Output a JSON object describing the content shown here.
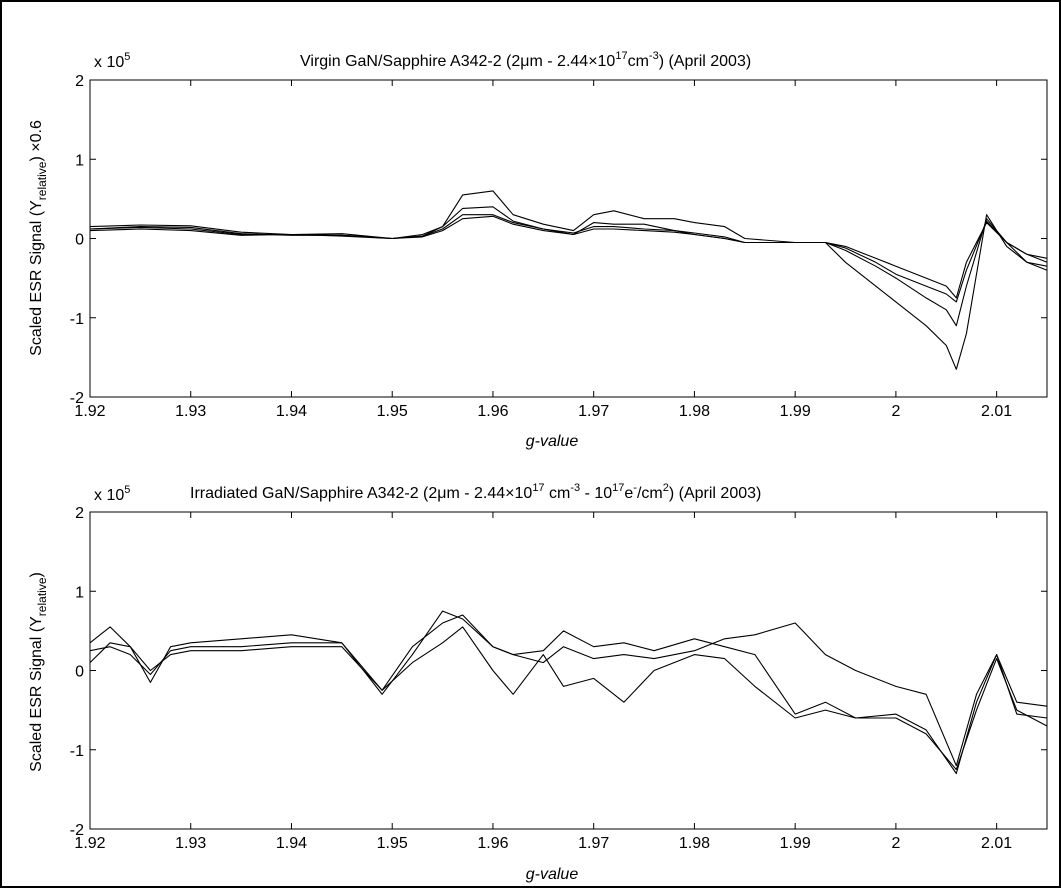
{
  "chart_data": [
    {
      "type": "line",
      "title_main": "Virgin GaN/Sapphire A342-2 (2",
      "title_mu": "μ",
      "title_a": "m - 2.44",
      "title_times": "×",
      "title_b": "10",
      "title_exp1": "17",
      "title_c": "cm",
      "title_exp2": "-3",
      "title_d": ") (April 2003)",
      "xlabel": "g-value",
      "ylabel_a": "Scaled ESR Signal (Y",
      "ylabel_sub": "relative",
      "ylabel_b": ") ×0.6",
      "multiplier_base": "x 10",
      "multiplier_exp": "5",
      "xlim": [
        1.92,
        2.015
      ],
      "ylim": [
        -2,
        2
      ],
      "x_ticks": [
        "1.92",
        "1.93",
        "1.94",
        "1.95",
        "1.96",
        "1.97",
        "1.98",
        "1.99",
        "2",
        "2.01"
      ],
      "y_ticks": [
        "-2",
        "-1",
        "0",
        "1",
        "2"
      ],
      "grid": false,
      "x": [
        1.92,
        1.925,
        1.93,
        1.935,
        1.94,
        1.945,
        1.95,
        1.953,
        1.955,
        1.957,
        1.96,
        1.962,
        1.965,
        1.968,
        1.97,
        1.972,
        1.975,
        1.978,
        1.98,
        1.983,
        1.985,
        1.99,
        1.993,
        1.995,
        1.998,
        2.0,
        2.003,
        2.005,
        2.006,
        2.007,
        2.009,
        2.011,
        2.013,
        2.015
      ],
      "series": [
        {
          "values": [
            0.15,
            0.17,
            0.16,
            0.08,
            0.05,
            0.06,
            0.0,
            0.05,
            0.15,
            0.55,
            0.6,
            0.3,
            0.18,
            0.1,
            0.3,
            0.35,
            0.25,
            0.25,
            0.2,
            0.15,
            0.0,
            -0.05,
            -0.05,
            -0.3,
            -0.6,
            -0.8,
            -1.1,
            -1.35,
            -1.65,
            -1.2,
            0.3,
            -0.1,
            -0.3,
            -0.4
          ]
        },
        {
          "values": [
            0.12,
            0.14,
            0.12,
            0.05,
            0.05,
            0.04,
            0.0,
            0.03,
            0.15,
            0.38,
            0.4,
            0.22,
            0.12,
            0.05,
            0.2,
            0.18,
            0.18,
            0.1,
            0.05,
            0.0,
            -0.05,
            -0.05,
            -0.05,
            -0.15,
            -0.35,
            -0.5,
            -0.75,
            -0.9,
            -1.1,
            -0.6,
            0.25,
            -0.05,
            -0.3,
            -0.35
          ]
        },
        {
          "values": [
            0.1,
            0.12,
            0.1,
            0.04,
            0.05,
            0.03,
            0.0,
            0.02,
            0.1,
            0.25,
            0.28,
            0.18,
            0.1,
            0.05,
            0.12,
            0.12,
            0.1,
            0.08,
            0.05,
            0.0,
            -0.05,
            -0.05,
            -0.05,
            -0.1,
            -0.25,
            -0.35,
            -0.5,
            -0.6,
            -0.75,
            -0.3,
            0.2,
            -0.05,
            -0.2,
            -0.25
          ]
        },
        {
          "values": [
            0.12,
            0.15,
            0.14,
            0.06,
            0.04,
            0.04,
            0.0,
            0.03,
            0.12,
            0.3,
            0.3,
            0.2,
            0.12,
            0.07,
            0.15,
            0.15,
            0.12,
            0.1,
            0.07,
            0.02,
            -0.05,
            -0.05,
            -0.05,
            -0.12,
            -0.3,
            -0.45,
            -0.6,
            -0.7,
            -0.8,
            -0.4,
            0.22,
            -0.05,
            -0.2,
            -0.3
          ]
        }
      ]
    },
    {
      "type": "line",
      "title_main": "Irradiated GaN/Sapphire A342-2 (2",
      "title_mu": "μ",
      "title_a": "m - 2.44",
      "title_times": "×",
      "title_b": "10",
      "title_exp1": "17",
      "title_c": " cm",
      "title_exp2": "-3",
      "title_d": " - 10",
      "title_exp3": "17",
      "title_e": "e",
      "title_exp4": "-",
      "title_f": "/cm",
      "title_exp5": "2",
      "title_g": ") (April 2003)",
      "xlabel": "g-value",
      "ylabel_a": "Scaled ESR Signal (Y",
      "ylabel_sub": "relative",
      "ylabel_b": ")",
      "multiplier_base": "x 10",
      "multiplier_exp": "5",
      "xlim": [
        1.92,
        2.015
      ],
      "ylim": [
        -2,
        2
      ],
      "x_ticks": [
        "1.92",
        "1.93",
        "1.94",
        "1.95",
        "1.96",
        "1.97",
        "1.98",
        "1.99",
        "2",
        "2.01"
      ],
      "y_ticks": [
        "-2",
        "-1",
        "0",
        "1",
        "2"
      ],
      "grid": false,
      "x": [
        1.92,
        1.922,
        1.924,
        1.926,
        1.928,
        1.93,
        1.935,
        1.94,
        1.945,
        1.949,
        1.952,
        1.955,
        1.957,
        1.96,
        1.962,
        1.965,
        1.967,
        1.97,
        1.973,
        1.976,
        1.98,
        1.983,
        1.986,
        1.99,
        1.993,
        1.996,
        2.0,
        2.003,
        2.006,
        2.008,
        2.01,
        2.012,
        2.015
      ],
      "series": [
        {
          "values": [
            0.35,
            0.55,
            0.3,
            -0.15,
            0.3,
            0.35,
            0.4,
            0.45,
            0.35,
            -0.3,
            0.2,
            0.75,
            0.65,
            0.3,
            0.2,
            0.25,
            0.5,
            0.3,
            0.35,
            0.25,
            0.4,
            0.3,
            0.2,
            -0.55,
            -0.4,
            -0.6,
            -0.6,
            -0.8,
            -1.25,
            -0.5,
            0.15,
            -0.5,
            -0.7
          ]
        },
        {
          "values": [
            0.1,
            0.35,
            0.3,
            0.0,
            0.2,
            0.25,
            0.25,
            0.3,
            0.3,
            -0.25,
            0.1,
            0.35,
            0.55,
            0.0,
            -0.3,
            0.2,
            -0.2,
            -0.1,
            -0.4,
            0.0,
            0.2,
            0.15,
            -0.2,
            -0.6,
            -0.5,
            -0.6,
            -0.55,
            -0.75,
            -1.3,
            -0.4,
            0.2,
            -0.55,
            -0.6
          ]
        },
        {
          "values": [
            0.25,
            0.3,
            0.2,
            -0.05,
            0.25,
            0.3,
            0.3,
            0.35,
            0.35,
            -0.25,
            0.3,
            0.6,
            0.7,
            0.3,
            0.2,
            0.1,
            0.3,
            0.15,
            0.2,
            0.15,
            0.25,
            0.4,
            0.45,
            0.6,
            0.2,
            0.0,
            -0.2,
            -0.3,
            -1.2,
            -0.3,
            0.2,
            -0.4,
            -0.45
          ]
        }
      ]
    }
  ]
}
